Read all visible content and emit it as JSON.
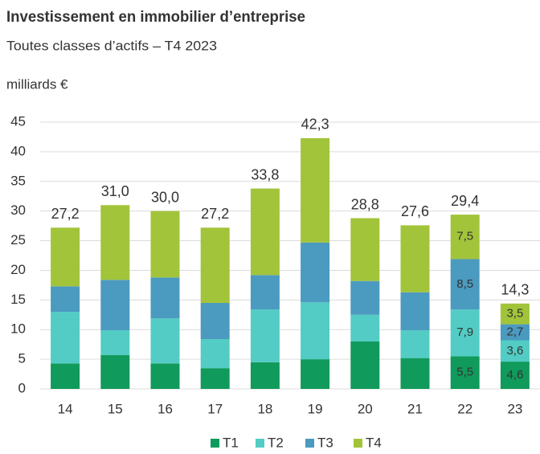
{
  "chart_data": {
    "type": "stacked_bar",
    "title": "Investissement en immobilier d’entreprise",
    "subtitle": "Toutes classes d’actifs – T4 2023",
    "y_label": "milliards €",
    "categories": [
      "14",
      "15",
      "16",
      "17",
      "18",
      "19",
      "20",
      "21",
      "22",
      "23"
    ],
    "series": [
      {
        "name": "T1",
        "color": "#109a5b",
        "values": [
          4.3,
          5.7,
          4.3,
          3.5,
          4.5,
          5.0,
          8.0,
          5.2,
          5.5,
          4.6
        ],
        "value_labels": [
          null,
          null,
          null,
          null,
          null,
          null,
          null,
          null,
          "5,5",
          "4,6"
        ]
      },
      {
        "name": "T2",
        "color": "#52ccc4",
        "values": [
          8.7,
          4.2,
          7.6,
          4.9,
          8.9,
          9.6,
          4.5,
          4.7,
          7.9,
          3.6
        ],
        "value_labels": [
          null,
          null,
          null,
          null,
          null,
          null,
          null,
          null,
          "7,9",
          "3,6"
        ]
      },
      {
        "name": "T3",
        "color": "#4b9ac0",
        "values": [
          4.3,
          8.5,
          6.9,
          6.1,
          5.8,
          10.1,
          5.7,
          6.4,
          8.5,
          2.7
        ],
        "value_labels": [
          null,
          null,
          null,
          null,
          null,
          null,
          null,
          null,
          "8,5",
          "2,7"
        ]
      },
      {
        "name": "T4",
        "color": "#a2c43a",
        "values": [
          9.9,
          12.6,
          11.2,
          12.7,
          14.6,
          17.6,
          10.6,
          11.3,
          7.5,
          3.5
        ],
        "value_labels": [
          null,
          null,
          null,
          null,
          null,
          null,
          null,
          null,
          "7,5",
          "3,5"
        ]
      }
    ],
    "totals": [
      27.2,
      31.0,
      30.0,
      27.2,
      33.8,
      42.3,
      28.8,
      27.6,
      29.4,
      14.3
    ],
    "total_labels": [
      "27,2",
      "31,0",
      "30,0",
      "27,2",
      "33,8",
      "42,3",
      "28,8",
      "27,6",
      "29,4",
      "14,3"
    ],
    "ylim": [
      0,
      45
    ],
    "yticks": [
      0,
      5,
      10,
      15,
      20,
      25,
      30,
      35,
      40,
      45
    ],
    "grid": true,
    "legend": "bottom"
  }
}
